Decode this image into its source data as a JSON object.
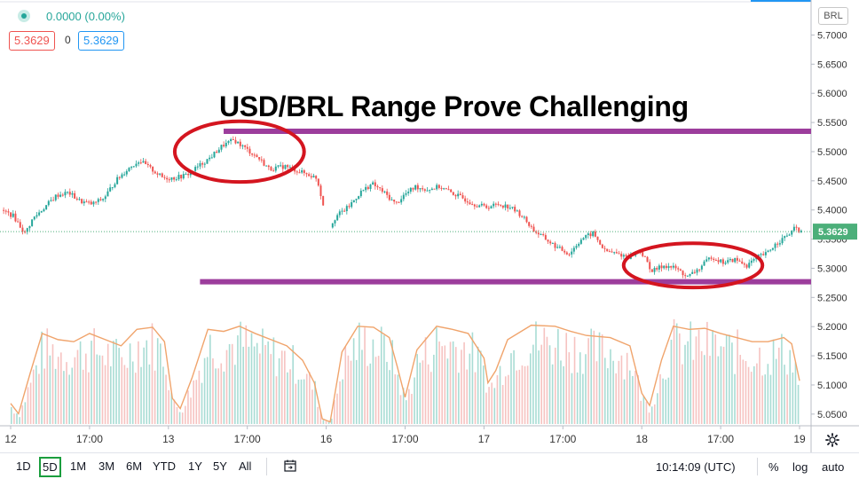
{
  "header": {
    "change": "0.0000 (0.00%)",
    "sell_price": "5.3629",
    "spread": "0",
    "buy_price": "5.3629",
    "currency": "BRL"
  },
  "annotation_title": "USD/BRL Range Prove Challenging",
  "chart_data": {
    "type": "candlestick",
    "price_axis": {
      "range": [
        5.03,
        5.76
      ],
      "ticks": [
        "5.7000",
        "5.6500",
        "5.6000",
        "5.5500",
        "5.5000",
        "5.4500",
        "5.4000",
        "5.3500",
        "5.3000",
        "5.2500",
        "5.2000",
        "5.1500",
        "5.1000",
        "5.0500"
      ]
    },
    "time_axis": {
      "range": [
        0,
        10
      ],
      "ticks": [
        {
          "t": 0.0,
          "label": "12"
        },
        {
          "t": 1.0,
          "label": "17:00"
        },
        {
          "t": 2.0,
          "label": "13"
        },
        {
          "t": 3.0,
          "label": "17:00"
        },
        {
          "t": 4.0,
          "label": "16"
        },
        {
          "t": 5.0,
          "label": "17:00"
        },
        {
          "t": 6.0,
          "label": "17"
        },
        {
          "t": 7.0,
          "label": "17:00"
        },
        {
          "t": 8.0,
          "label": "18"
        },
        {
          "t": 9.0,
          "label": "17:00"
        },
        {
          "t": 10.0,
          "label": "19"
        }
      ]
    },
    "last_price": 5.3629,
    "last_price_label": "5.3629",
    "resistance": {
      "price": 5.535,
      "t_start": 2.7,
      "t_end": 10.3
    },
    "support": {
      "price": 5.277,
      "t_start": 2.4,
      "t_end": 10.3
    },
    "highlights": [
      {
        "t_center": 2.9,
        "price_center": 5.5,
        "t_radius": 0.82,
        "price_radius": 0.052
      },
      {
        "t_center": 8.65,
        "price_center": 5.305,
        "t_radius": 0.88,
        "price_radius": 0.038
      }
    ],
    "price_path": [
      [
        -0.1,
        5.4
      ],
      [
        0.05,
        5.39
      ],
      [
        0.2,
        5.36
      ],
      [
        0.3,
        5.385
      ],
      [
        0.45,
        5.405
      ],
      [
        0.6,
        5.425
      ],
      [
        0.75,
        5.43
      ],
      [
        0.9,
        5.415
      ],
      [
        1.05,
        5.41
      ],
      [
        1.2,
        5.42
      ],
      [
        1.35,
        5.45
      ],
      [
        1.5,
        5.47
      ],
      [
        1.65,
        5.485
      ],
      [
        1.8,
        5.47
      ],
      [
        1.95,
        5.455
      ],
      [
        2.1,
        5.455
      ],
      [
        2.25,
        5.46
      ],
      [
        2.4,
        5.475
      ],
      [
        2.55,
        5.49
      ],
      [
        2.7,
        5.51
      ],
      [
        2.85,
        5.52
      ],
      [
        3.0,
        5.505
      ],
      [
        3.15,
        5.49
      ],
      [
        3.3,
        5.47
      ],
      [
        3.5,
        5.475
      ],
      [
        3.7,
        5.465
      ],
      [
        3.9,
        5.455
      ],
      [
        4.05,
        5.37
      ],
      [
        4.15,
        5.39
      ],
      [
        4.3,
        5.405
      ],
      [
        4.45,
        5.43
      ],
      [
        4.6,
        5.445
      ],
      [
        4.75,
        5.43
      ],
      [
        4.9,
        5.41
      ],
      [
        5.0,
        5.425
      ],
      [
        5.15,
        5.44
      ],
      [
        5.3,
        5.435
      ],
      [
        5.45,
        5.44
      ],
      [
        5.6,
        5.43
      ],
      [
        5.75,
        5.42
      ],
      [
        5.9,
        5.41
      ],
      [
        6.05,
        5.405
      ],
      [
        6.2,
        5.41
      ],
      [
        6.35,
        5.405
      ],
      [
        6.5,
        5.39
      ],
      [
        6.65,
        5.365
      ],
      [
        6.8,
        5.35
      ],
      [
        6.95,
        5.335
      ],
      [
        7.1,
        5.325
      ],
      [
        7.25,
        5.35
      ],
      [
        7.4,
        5.36
      ],
      [
        7.55,
        5.33
      ],
      [
        7.7,
        5.325
      ],
      [
        7.85,
        5.32
      ],
      [
        8.0,
        5.33
      ],
      [
        8.15,
        5.295
      ],
      [
        8.3,
        5.305
      ],
      [
        8.45,
        5.3
      ],
      [
        8.6,
        5.285
      ],
      [
        8.75,
        5.3
      ],
      [
        8.9,
        5.32
      ],
      [
        9.05,
        5.31
      ],
      [
        9.2,
        5.315
      ],
      [
        9.35,
        5.305
      ],
      [
        9.5,
        5.32
      ],
      [
        9.6,
        5.325
      ],
      [
        9.7,
        5.34
      ],
      [
        9.8,
        5.35
      ],
      [
        9.9,
        5.36
      ],
      [
        9.97,
        5.37
      ],
      [
        10.03,
        5.3629
      ]
    ],
    "volume_axis": {
      "range": [
        0,
        100
      ]
    },
    "volume_ma": [
      [
        0.0,
        20
      ],
      [
        0.1,
        10
      ],
      [
        0.25,
        50
      ],
      [
        0.4,
        88
      ],
      [
        0.6,
        82
      ],
      [
        0.8,
        80
      ],
      [
        1.0,
        88
      ],
      [
        1.2,
        82
      ],
      [
        1.4,
        76
      ],
      [
        1.6,
        92
      ],
      [
        1.8,
        94
      ],
      [
        1.95,
        80
      ],
      [
        2.05,
        25
      ],
      [
        2.15,
        15
      ],
      [
        2.3,
        45
      ],
      [
        2.5,
        92
      ],
      [
        2.7,
        90
      ],
      [
        2.9,
        95
      ],
      [
        3.1,
        88
      ],
      [
        3.3,
        82
      ],
      [
        3.5,
        76
      ],
      [
        3.7,
        62
      ],
      [
        3.85,
        40
      ],
      [
        3.95,
        5
      ],
      [
        4.05,
        2
      ],
      [
        4.2,
        70
      ],
      [
        4.4,
        95
      ],
      [
        4.6,
        94
      ],
      [
        4.8,
        84
      ],
      [
        4.9,
        56
      ],
      [
        5.0,
        26
      ],
      [
        5.15,
        72
      ],
      [
        5.4,
        95
      ],
      [
        5.6,
        92
      ],
      [
        5.8,
        88
      ],
      [
        6.0,
        64
      ],
      [
        6.05,
        40
      ],
      [
        6.15,
        52
      ],
      [
        6.3,
        82
      ],
      [
        6.6,
        96
      ],
      [
        6.9,
        95
      ],
      [
        7.1,
        90
      ],
      [
        7.3,
        86
      ],
      [
        7.6,
        84
      ],
      [
        7.85,
        76
      ],
      [
        8.0,
        30
      ],
      [
        8.1,
        18
      ],
      [
        8.25,
        62
      ],
      [
        8.4,
        95
      ],
      [
        8.6,
        92
      ],
      [
        8.8,
        93
      ],
      [
        9.0,
        88
      ],
      [
        9.2,
        84
      ],
      [
        9.4,
        80
      ],
      [
        9.6,
        80
      ],
      [
        9.8,
        84
      ],
      [
        9.9,
        78
      ],
      [
        10.0,
        42
      ]
    ]
  },
  "bottom_toolbar": {
    "timeframes": [
      "1D",
      "5D",
      "1M",
      "3M",
      "6M",
      "YTD",
      "1Y",
      "5Y",
      "All"
    ],
    "selected": "5D",
    "clock": "10:14:09 (UTC)",
    "percent": "%",
    "log": "log",
    "auto": "auto"
  },
  "colors": {
    "up": "#26a69a",
    "down": "#ef5350",
    "band": "#9c3d9c",
    "circle": "#d4151f",
    "ma": "#f0a46c",
    "last_price": "#4caf7a"
  }
}
